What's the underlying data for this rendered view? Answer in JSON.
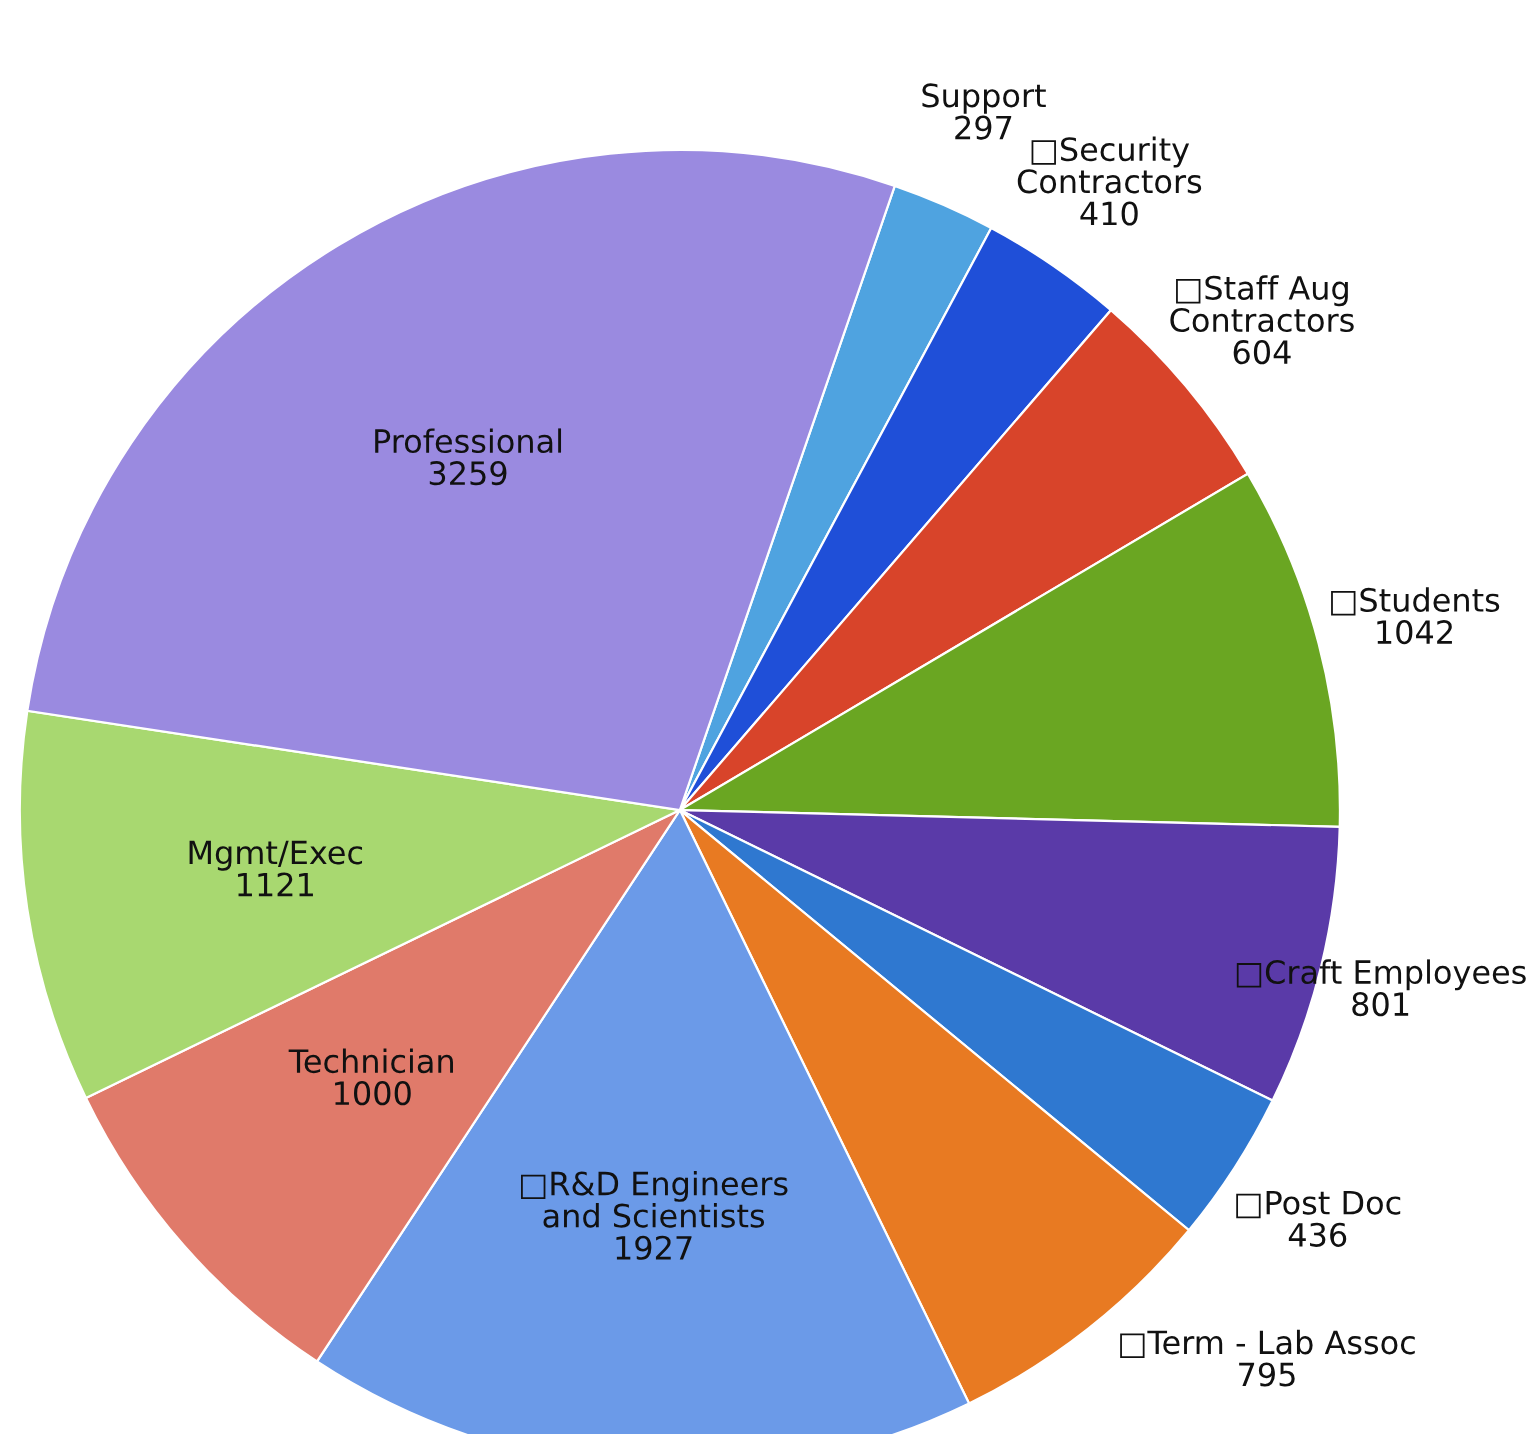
{
  "chart_data": {
    "type": "pie",
    "categories": [
      "Support",
      "□Security Contractors",
      "□Staff Aug Contractors",
      "□Students",
      "□Craft Employees",
      "□Post Doc",
      "□Term - Lab Assoc",
      "□R&D Engineers and Scientists",
      "Technician",
      "Mgmt/Exec",
      "Professional"
    ],
    "values": [
      297,
      410,
      604,
      1042,
      801,
      436,
      795,
      1927,
      1000,
      1121,
      3259
    ],
    "colors": [
      "#4fa3e0",
      "#1f4fd8",
      "#d8442a",
      "#6aa622",
      "#5a3aa8",
      "#2f78d0",
      "#e87a22",
      "#6b9ae8",
      "#e07a6a",
      "#a8d870",
      "#9a8ae0"
    ],
    "data_labels": true
  }
}
